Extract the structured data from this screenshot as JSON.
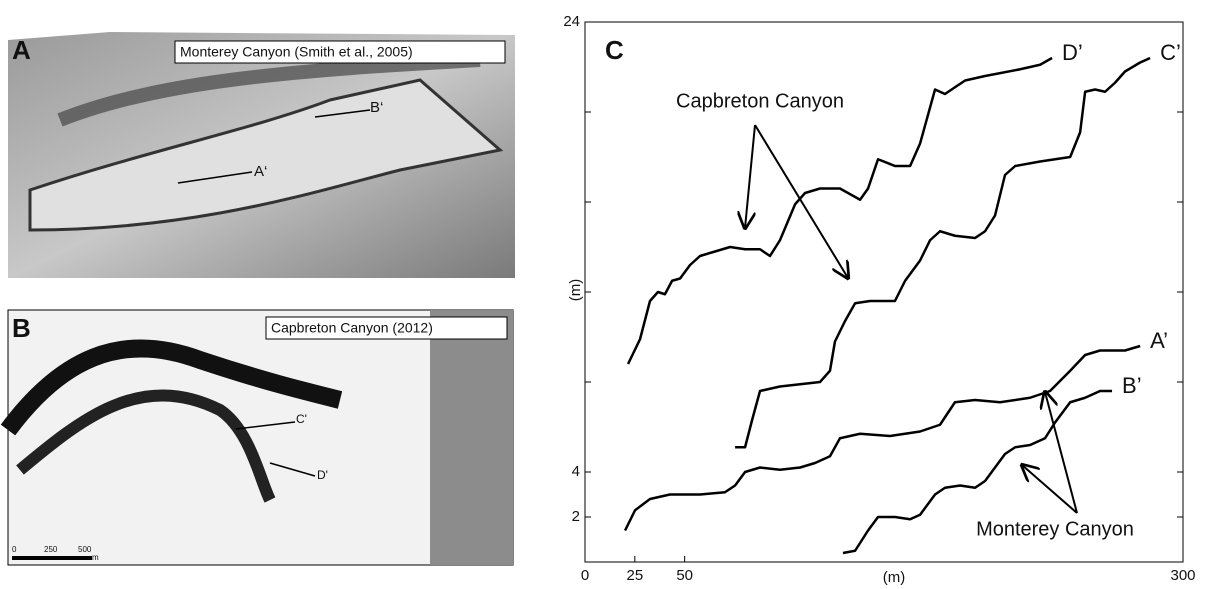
{
  "panel_a": {
    "letter": "A",
    "caption": "Monterey Canyon  (Smith et al., 2005)",
    "labels": [
      "B‘",
      "A‘"
    ]
  },
  "panel_b": {
    "letter": "B",
    "caption": "Capbreton Canyon  (2012)",
    "labels": [
      "C'",
      "D'"
    ],
    "scale": [
      "0",
      "250",
      "500",
      "m"
    ]
  },
  "chart_data": {
    "type": "line",
    "title": "C",
    "x_label": "(m)",
    "y_label": "(m)",
    "xlim": [
      0,
      300
    ],
    "ylim": [
      0,
      24
    ],
    "xticks": [
      0,
      25,
      50,
      300
    ],
    "yticks": [
      2,
      4,
      24
    ],
    "minor_yticks": [
      8,
      12,
      16,
      20
    ],
    "color": "#000000",
    "annotations": [
      "Capbreton Canyon",
      "Monterey Canyon"
    ],
    "series": [
      {
        "name": "D’",
        "x": [
          21.6,
          27.6,
          32.6,
          36.6,
          40.1,
          43.7,
          47.7,
          52.7,
          57.7,
          65.2,
          72.8,
          80.3,
          87.8,
          92.8,
          97.8,
          105.4,
          110.4,
          117.9,
          127.9,
          138.0,
          142.0,
          147.0,
          155.5,
          163.1,
          168.1,
          175.6,
          180.6,
          185.6,
          190.7,
          200.7,
          218.3,
          228.3,
          234.3
        ],
        "values": [
          8.8,
          9.9,
          11.6,
          12.0,
          11.9,
          12.5,
          12.6,
          13.2,
          13.6,
          13.8,
          14.0,
          13.9,
          13.9,
          13.6,
          14.3,
          15.9,
          16.4,
          16.6,
          16.6,
          16.1,
          16.6,
          17.9,
          17.6,
          17.6,
          18.6,
          21.0,
          20.8,
          21.1,
          21.4,
          21.6,
          21.9,
          22.1,
          22.4
        ]
      },
      {
        "name": "C’",
        "x": [
          75.3,
          80.3,
          83.8,
          87.8,
          97.8,
          107.9,
          117.9,
          122.9,
          125.4,
          130.4,
          135.5,
          143.0,
          150.5,
          155.5,
          160.6,
          168.1,
          173.1,
          178.1,
          185.6,
          195.7,
          200.7,
          205.7,
          210.7,
          215.8,
          228.3,
          243.4,
          248.4,
          250.9,
          255.9,
          260.9,
          265.9,
          270.9,
          278.5,
          283.5
        ],
        "values": [
          5.1,
          5.1,
          6.3,
          7.6,
          7.8,
          7.9,
          8.0,
          8.5,
          9.8,
          10.7,
          11.5,
          11.6,
          11.6,
          11.6,
          12.5,
          13.4,
          14.3,
          14.7,
          14.5,
          14.4,
          14.7,
          15.4,
          17.2,
          17.6,
          17.8,
          18.0,
          19.1,
          20.9,
          21.0,
          20.9,
          21.3,
          21.8,
          22.2,
          22.4
        ]
      },
      {
        "name": "A’",
        "x": [
          20.1,
          25.1,
          32.6,
          42.6,
          57.7,
          70.2,
          75.3,
          80.3,
          87.8,
          97.8,
          107.9,
          115.4,
          122.9,
          127.9,
          138.0,
          153.0,
          168.1,
          178.1,
          185.6,
          195.7,
          208.2,
          223.3,
          233.3,
          243.4,
          250.9,
          258.4,
          270.9,
          278.5
        ],
        "values": [
          1.4,
          2.3,
          2.8,
          3.0,
          3.0,
          3.1,
          3.4,
          4.0,
          4.2,
          4.1,
          4.2,
          4.4,
          4.7,
          5.5,
          5.7,
          5.6,
          5.8,
          6.1,
          7.1,
          7.2,
          7.1,
          7.3,
          7.6,
          8.5,
          9.2,
          9.4,
          9.4,
          9.6
        ]
      },
      {
        "name": "B’",
        "x": [
          129.4,
          135.5,
          142.0,
          147.0,
          155.5,
          163.1,
          168.1,
          175.6,
          180.6,
          188.2,
          195.7,
          200.7,
          205.7,
          210.7,
          215.8,
          223.3,
          230.8,
          235.8,
          243.4,
          250.9,
          258.4,
          264.4
        ],
        "values": [
          0.4,
          0.5,
          1.4,
          2.0,
          2.0,
          1.9,
          2.1,
          3.0,
          3.3,
          3.4,
          3.3,
          3.6,
          4.2,
          4.8,
          5.1,
          5.2,
          5.5,
          6.2,
          7.1,
          7.3,
          7.6,
          7.6
        ]
      }
    ]
  }
}
